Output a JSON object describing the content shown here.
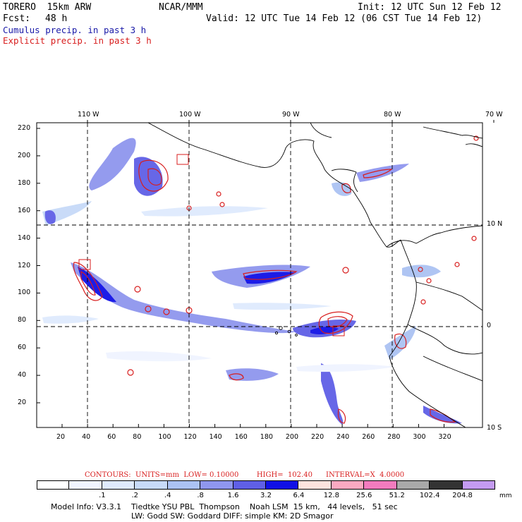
{
  "header": {
    "model": "TORERO  15km ARW",
    "org": "NCAR/MMM",
    "init": "Init: 12 UTC Sun 12 Feb 12",
    "fcst_label": "Fcst:",
    "fcst_value": "48 h",
    "valid": "Valid: 12 UTC Tue 14 Feb 12 (06 CST Tue 14 Feb 12)"
  },
  "legend": {
    "cumulus": "Cumulus precip. in past 3 h",
    "explicit": "Explicit precip. in past 3 h",
    "cumulus_color": "#1a1aa8",
    "explicit_color": "#d81e1e"
  },
  "axes": {
    "top_lon": [
      "110 W",
      "100 W",
      "90 W",
      "80 W",
      "70 W"
    ],
    "right_lat": [
      "10 N",
      "0",
      "10 S"
    ],
    "left_ticks": [
      "220",
      "200",
      "180",
      "160",
      "140",
      "120",
      "100",
      "80",
      "60",
      "40",
      "20"
    ],
    "bottom_ticks": [
      "20",
      "40",
      "60",
      "80",
      "100",
      "120",
      "140",
      "160",
      "180",
      "200",
      "220",
      "240",
      "260",
      "280",
      "300",
      "320"
    ]
  },
  "contours_info": {
    "label": "CONTOURS:  UNITS=mm  LOW= 0.10000",
    "high": "HIGH=  102.40",
    "interval": "INTERVAL=X  4.0000"
  },
  "colorbar": {
    "colors": [
      "#ffffff",
      "#f0f4ff",
      "#dfeafd",
      "#c7daf8",
      "#abc2f3",
      "#8f96ee",
      "#5f5fe6",
      "#1010e6",
      "#fde3de",
      "#fba9c1",
      "#f27bbe",
      "#a9a9a9",
      "#333333",
      "#c49bf1"
    ],
    "labels": [
      ".1",
      ".2",
      ".4",
      ".8",
      "1.6",
      "3.2",
      "6.4",
      "12.8",
      "25.6",
      "51.2",
      "102.4",
      "204.8"
    ],
    "unit": "mm"
  },
  "footer": {
    "line1": "Model Info: V3.3.1    Tiedtke YSU PBL  Thompson    Noah LSM  15 km,   44 levels,   51 sec",
    "line2": "LW: Godd SW: Goddard DIFF: simple KM: 2D Smagor"
  }
}
